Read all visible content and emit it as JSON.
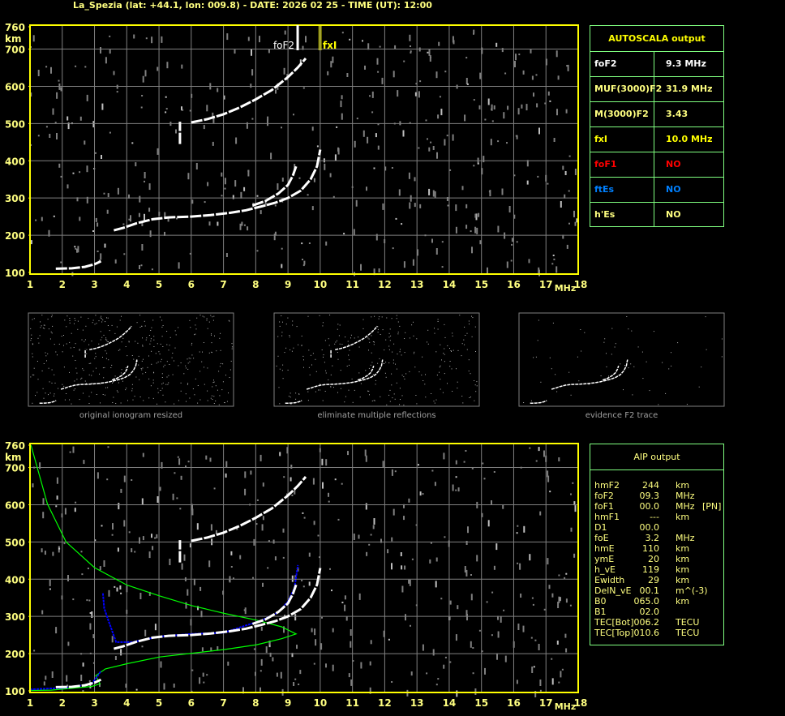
{
  "title": "La_Spezia (lat: +44.1, lon: 009.8) - DATE: 2026 02 25 - TIME (UT): 12:00",
  "axes": {
    "y_ticks": [
      "760",
      "700",
      "600",
      "500",
      "400",
      "300",
      "200",
      "100"
    ],
    "y_unit": "km",
    "x_ticks": [
      "1",
      "2",
      "3",
      "4",
      "5",
      "6",
      "7",
      "8",
      "9",
      "10",
      "11",
      "12",
      "13",
      "14",
      "15",
      "16",
      "17",
      "18"
    ],
    "x_unit": "MHz"
  },
  "markers": {
    "fof2_label": "foF2",
    "fxi_label": "fxI",
    "fof2_color": "#ffffff",
    "fxi_color": "#ffff00"
  },
  "autoscala": {
    "title": "AUTOSCALA output",
    "rows": [
      {
        "label": "foF2",
        "value": "9.3 MHz",
        "color": "#ffffff"
      },
      {
        "label": "MUF(3000)F2",
        "value": "31.9 MHz",
        "color": "#ffff80"
      },
      {
        "label": "M(3000)F2",
        "value": "3.43",
        "color": "#ffff80"
      },
      {
        "label": "fxI",
        "value": "10.0 MHz",
        "color": "#ffff00"
      },
      {
        "label": "foF1",
        "value": "NO",
        "color": "#ff0000"
      },
      {
        "label": "ftEs",
        "value": "NO",
        "color": "#0080ff"
      },
      {
        "label": "h'Es",
        "value": "NO",
        "color": "#ffff80"
      }
    ]
  },
  "aip": {
    "title": "AIP output",
    "rows": [
      {
        "label": "hmF2",
        "value": "244",
        "unit": "km",
        "extra": ""
      },
      {
        "label": "foF2",
        "value": "09.3",
        "unit": "MHz",
        "extra": ""
      },
      {
        "label": "foF1",
        "value": "00.0",
        "unit": "MHz",
        "extra": "[PN]"
      },
      {
        "label": "hmF1",
        "value": "---",
        "unit": "km",
        "extra": ""
      },
      {
        "label": "D1",
        "value": "00.0",
        "unit": "",
        "extra": ""
      },
      {
        "label": "foE",
        "value": "3.2",
        "unit": "MHz",
        "extra": ""
      },
      {
        "label": "hmE",
        "value": "110",
        "unit": "km",
        "extra": ""
      },
      {
        "label": "ymE",
        "value": "20",
        "unit": "km",
        "extra": ""
      },
      {
        "label": "h_vE",
        "value": "119",
        "unit": "km",
        "extra": ""
      },
      {
        "label": "Ewidth",
        "value": "29",
        "unit": "km",
        "extra": ""
      },
      {
        "label": "DelN_vE",
        "value": "00.1",
        "unit": "m^(-3)",
        "extra": ""
      },
      {
        "label": "B0",
        "value": "065.0",
        "unit": "km",
        "extra": ""
      },
      {
        "label": "B1",
        "value": "02.0",
        "unit": "",
        "extra": ""
      },
      {
        "label": "TEC[Bot]",
        "value": "006.2",
        "unit": "TECU",
        "extra": ""
      },
      {
        "label": "TEC[Top]",
        "value": "010.6",
        "unit": "TECU",
        "extra": ""
      }
    ]
  },
  "thumbnails": [
    {
      "caption": "original ionogram resized"
    },
    {
      "caption": "eliminate multiple reflections"
    },
    {
      "caption": "evidence F2 trace"
    }
  ],
  "chart_data": [
    {
      "type": "scatter",
      "xlim": [
        1,
        18
      ],
      "ylim": [
        100,
        760
      ],
      "grid": true,
      "xlabel": "MHz",
      "ylabel": "km",
      "markers": {
        "foF2": 9.3,
        "fxI": 10.0
      },
      "series": [
        {
          "color": "#ffffff",
          "points": [
            [
              1.8,
              110
            ],
            [
              2.3,
              111
            ],
            [
              2.7,
              115
            ],
            [
              3.0,
              122
            ],
            [
              3.2,
              130
            ]
          ]
        },
        {
          "color": "#ffffff",
          "points": [
            [
              3.6,
              213
            ],
            [
              3.9,
              220
            ],
            [
              4.3,
              232
            ],
            [
              4.8,
              243
            ],
            [
              5.3,
              248
            ],
            [
              6,
              250
            ],
            [
              6.6,
              254
            ],
            [
              7.2,
              260
            ],
            [
              7.7,
              267
            ],
            [
              8.2,
              278
            ],
            [
              8.6,
              287
            ],
            [
              9.0,
              300
            ],
            [
              9.4,
              320
            ],
            [
              9.7,
              350
            ],
            [
              9.9,
              385
            ],
            [
              10.0,
              430
            ]
          ]
        },
        {
          "color": "#ffffff",
          "points": [
            [
              7.9,
              280
            ],
            [
              8.3,
              292
            ],
            [
              8.7,
              312
            ],
            [
              9.0,
              335
            ],
            [
              9.15,
              360
            ],
            [
              9.25,
              385
            ]
          ]
        },
        {
          "color": "#ffffff",
          "points": [
            [
              6.0,
              503
            ],
            [
              6.5,
              512
            ],
            [
              7.0,
              525
            ],
            [
              7.5,
              543
            ],
            [
              8.0,
              565
            ],
            [
              8.5,
              590
            ],
            [
              9.0,
              625
            ],
            [
              9.3,
              650
            ],
            [
              9.55,
              675
            ]
          ]
        },
        {
          "color": "#ffffff",
          "points": [
            [
              5.65,
              445
            ],
            [
              5.65,
              505
            ]
          ]
        }
      ]
    },
    {
      "type": "line",
      "xlim": [
        1,
        18
      ],
      "ylim": [
        100,
        760
      ],
      "grid": true,
      "xlabel": "MHz",
      "ylabel": "km",
      "series": [
        {
          "color": "#00ff00",
          "points": [
            [
              1.03,
              760
            ],
            [
              1.54,
              602
            ],
            [
              2.12,
              500
            ],
            [
              3.0,
              431
            ],
            [
              4.01,
              384
            ],
            [
              5.02,
              355
            ],
            [
              6.02,
              329
            ],
            [
              7.03,
              308
            ],
            [
              8.03,
              290
            ],
            [
              8.8,
              272
            ],
            [
              9.25,
              253
            ],
            [
              8.8,
              240
            ],
            [
              8.03,
              224
            ],
            [
              7.03,
              211
            ],
            [
              6.02,
              201
            ],
            [
              5.02,
              191
            ],
            [
              4.01,
              173
            ],
            [
              3.34,
              159
            ],
            [
              3.04,
              141
            ],
            [
              3.17,
              119
            ],
            [
              2.92,
              112
            ],
            [
              1.66,
              102
            ],
            [
              1.0,
              101
            ]
          ]
        },
        {
          "color": "#0000ff",
          "points": [
            [
              1.0,
              104
            ],
            [
              2.08,
              108
            ],
            [
              2.92,
              119
            ],
            [
              3.13,
              144
            ],
            [
              3.2,
              154
            ]
          ]
        },
        {
          "color": "#0000ff",
          "points": [
            [
              3.26,
              362
            ],
            [
              3.3,
              322
            ],
            [
              3.4,
              297
            ],
            [
              3.67,
              231
            ],
            [
              4.17,
              231
            ],
            [
              5.02,
              246
            ],
            [
              6.0,
              253
            ],
            [
              7.0,
              256
            ],
            [
              7.53,
              271
            ],
            [
              8.2,
              290
            ],
            [
              8.7,
              311
            ],
            [
              9.0,
              340
            ],
            [
              9.2,
              376
            ],
            [
              9.23,
              394
            ],
            [
              9.31,
              438
            ]
          ]
        },
        {
          "color": "#ffffff",
          "points": [
            [
              1.8,
              110
            ],
            [
              2.3,
              111
            ],
            [
              2.7,
              115
            ],
            [
              3.0,
              122
            ],
            [
              3.2,
              130
            ]
          ]
        },
        {
          "color": "#ffffff",
          "points": [
            [
              3.6,
              213
            ],
            [
              3.9,
              220
            ],
            [
              4.3,
              232
            ],
            [
              4.8,
              243
            ],
            [
              5.3,
              248
            ],
            [
              6,
              250
            ],
            [
              6.6,
              254
            ],
            [
              7.2,
              260
            ],
            [
              7.7,
              267
            ],
            [
              8.2,
              278
            ],
            [
              8.6,
              287
            ],
            [
              9.0,
              300
            ],
            [
              9.4,
              320
            ],
            [
              9.7,
              350
            ],
            [
              9.9,
              385
            ],
            [
              10.0,
              430
            ]
          ]
        },
        {
          "color": "#ffffff",
          "points": [
            [
              7.9,
              280
            ],
            [
              8.3,
              292
            ],
            [
              8.7,
              312
            ],
            [
              9.0,
              335
            ],
            [
              9.15,
              360
            ],
            [
              9.25,
              385
            ]
          ]
        },
        {
          "color": "#ffffff",
          "points": [
            [
              6.0,
              503
            ],
            [
              6.5,
              512
            ],
            [
              7.0,
              525
            ],
            [
              7.5,
              543
            ],
            [
              8.0,
              565
            ],
            [
              8.5,
              590
            ],
            [
              9.0,
              625
            ],
            [
              9.3,
              650
            ],
            [
              9.55,
              675
            ]
          ]
        },
        {
          "color": "#ffffff",
          "points": [
            [
              5.65,
              445
            ],
            [
              5.65,
              505
            ]
          ]
        }
      ]
    }
  ]
}
